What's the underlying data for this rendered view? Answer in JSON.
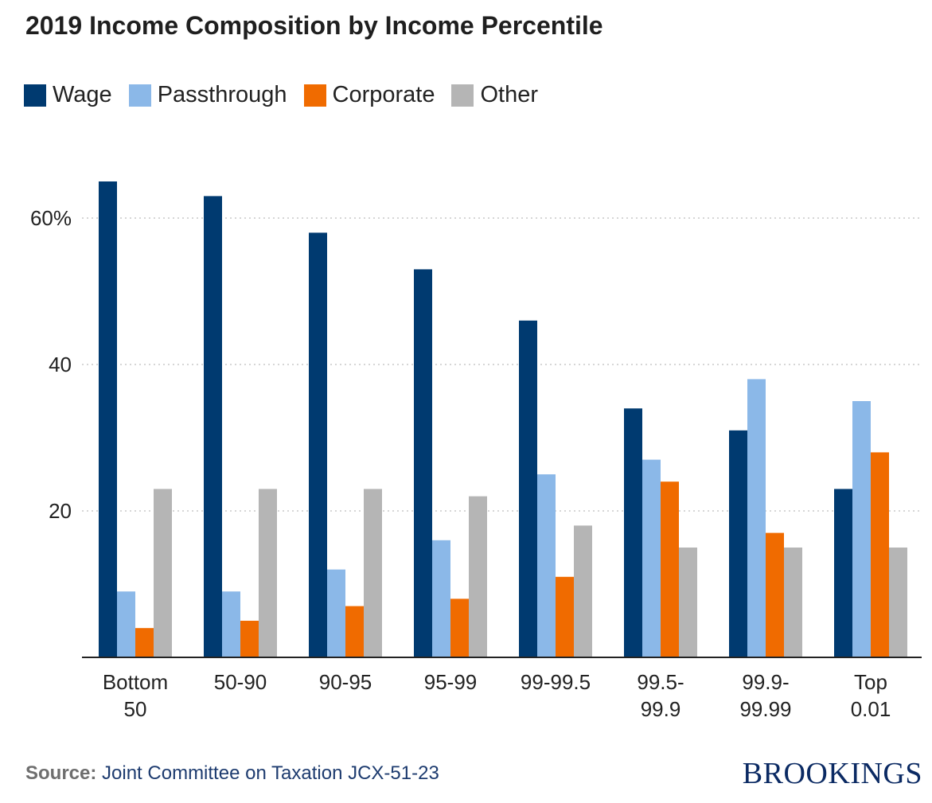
{
  "title": "2019 Income Composition by Income Percentile",
  "legend": [
    {
      "label": "Wage",
      "color": "#003a70"
    },
    {
      "label": "Passthrough",
      "color": "#8bb8e8"
    },
    {
      "label": "Corporate",
      "color": "#f06b00"
    },
    {
      "label": "Other",
      "color": "#b5b5b5"
    }
  ],
  "source": {
    "label": "Source:",
    "text": "Joint Committee on Taxation JCX-51-23"
  },
  "brand": "BROOKINGS",
  "chart_data": {
    "type": "bar",
    "categories": [
      [
        "Bottom",
        "50"
      ],
      [
        "50-90"
      ],
      [
        "90-95"
      ],
      [
        "95-99"
      ],
      [
        "99-99.5"
      ],
      [
        "99.5-",
        "99.9"
      ],
      [
        "99.9-",
        "99.99"
      ],
      [
        "Top",
        "0.01"
      ]
    ],
    "series": [
      {
        "name": "Wage",
        "color": "#003a70",
        "values": [
          65,
          63,
          58,
          53,
          46,
          34,
          31,
          23
        ]
      },
      {
        "name": "Passthrough",
        "color": "#8bb8e8",
        "values": [
          9,
          9,
          12,
          16,
          25,
          27,
          38,
          35
        ]
      },
      {
        "name": "Corporate",
        "color": "#f06b00",
        "values": [
          4,
          5,
          7,
          8,
          11,
          24,
          17,
          28
        ]
      },
      {
        "name": "Other",
        "color": "#b5b5b5",
        "values": [
          23,
          23,
          23,
          22,
          18,
          15,
          15,
          15
        ]
      }
    ],
    "ylim": [
      0,
      70
    ],
    "yticks": [
      {
        "value": 20,
        "label": "20"
      },
      {
        "value": 40,
        "label": "40"
      },
      {
        "value": 60,
        "label": "60%"
      }
    ],
    "grid": true,
    "legend_position": "top-left"
  }
}
